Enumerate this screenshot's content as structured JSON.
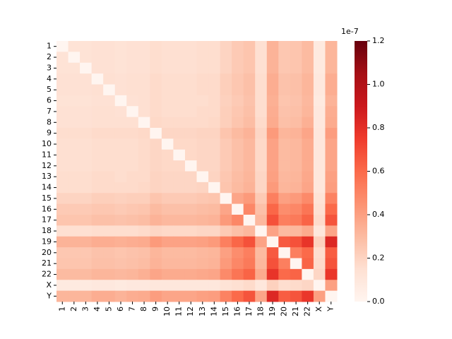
{
  "chart_data": {
    "type": "heatmap",
    "categories": [
      "1",
      "2",
      "3",
      "4",
      "5",
      "6",
      "7",
      "8",
      "9",
      "10",
      "11",
      "12",
      "13",
      "14",
      "15",
      "16",
      "17",
      "18",
      "19",
      "20",
      "21",
      "22",
      "X",
      "Y"
    ],
    "colormap": "Reds",
    "zlim": [
      0,
      1.2
    ],
    "zticks": [
      {
        "value": 0,
        "label": "0.0"
      },
      {
        "value": 0.2,
        "label": "0.2"
      },
      {
        "value": 0.4,
        "label": "0.4"
      },
      {
        "value": 0.6,
        "label": "0.6"
      },
      {
        "value": 0.8,
        "label": "0.8"
      },
      {
        "value": 1,
        "label": "1.0"
      },
      {
        "value": 1.2,
        "label": "1.2"
      }
    ],
    "offset_label": "1e-7",
    "values": [
      [
        0,
        0.13,
        0.13,
        0.14,
        0.14,
        0.13,
        0.14,
        0.14,
        0.16,
        0.15,
        0.15,
        0.15,
        0.16,
        0.16,
        0.2,
        0.24,
        0.26,
        0.15,
        0.33,
        0.25,
        0.26,
        0.3,
        0.08,
        0.32
      ],
      [
        0.13,
        0,
        0.13,
        0.14,
        0.14,
        0.13,
        0.14,
        0.14,
        0.16,
        0.15,
        0.15,
        0.15,
        0.16,
        0.16,
        0.2,
        0.24,
        0.26,
        0.15,
        0.33,
        0.25,
        0.26,
        0.3,
        0.08,
        0.32
      ],
      [
        0.13,
        0.13,
        0,
        0.14,
        0.14,
        0.13,
        0.14,
        0.14,
        0.16,
        0.15,
        0.15,
        0.15,
        0.16,
        0.16,
        0.2,
        0.24,
        0.26,
        0.15,
        0.33,
        0.25,
        0.26,
        0.3,
        0.08,
        0.32
      ],
      [
        0.14,
        0.14,
        0.14,
        0,
        0.15,
        0.14,
        0.15,
        0.15,
        0.17,
        0.16,
        0.16,
        0.16,
        0.17,
        0.17,
        0.22,
        0.25,
        0.28,
        0.16,
        0.35,
        0.27,
        0.28,
        0.32,
        0.09,
        0.35
      ],
      [
        0.14,
        0.14,
        0.14,
        0.15,
        0,
        0.14,
        0.15,
        0.15,
        0.17,
        0.16,
        0.16,
        0.16,
        0.17,
        0.17,
        0.22,
        0.25,
        0.28,
        0.16,
        0.35,
        0.27,
        0.28,
        0.32,
        0.09,
        0.35
      ],
      [
        0.13,
        0.13,
        0.13,
        0.14,
        0.14,
        0,
        0.14,
        0.15,
        0.17,
        0.16,
        0.16,
        0.16,
        0.16,
        0.17,
        0.21,
        0.24,
        0.27,
        0.16,
        0.34,
        0.26,
        0.27,
        0.31,
        0.08,
        0.33
      ],
      [
        0.14,
        0.14,
        0.14,
        0.15,
        0.15,
        0.14,
        0,
        0.15,
        0.17,
        0.16,
        0.16,
        0.16,
        0.17,
        0.17,
        0.22,
        0.25,
        0.28,
        0.16,
        0.35,
        0.27,
        0.28,
        0.32,
        0.09,
        0.35
      ],
      [
        0.14,
        0.14,
        0.14,
        0.15,
        0.15,
        0.15,
        0.15,
        0,
        0.18,
        0.17,
        0.17,
        0.17,
        0.17,
        0.18,
        0.22,
        0.26,
        0.29,
        0.17,
        0.36,
        0.28,
        0.29,
        0.34,
        0.09,
        0.36
      ],
      [
        0.16,
        0.16,
        0.16,
        0.17,
        0.17,
        0.17,
        0.17,
        0.18,
        0,
        0.19,
        0.19,
        0.19,
        0.2,
        0.2,
        0.26,
        0.3,
        0.33,
        0.19,
        0.42,
        0.32,
        0.33,
        0.38,
        0.1,
        0.41
      ],
      [
        0.15,
        0.15,
        0.15,
        0.16,
        0.16,
        0.16,
        0.16,
        0.17,
        0.19,
        0,
        0.18,
        0.18,
        0.19,
        0.19,
        0.24,
        0.28,
        0.31,
        0.18,
        0.39,
        0.3,
        0.31,
        0.36,
        0.1,
        0.38
      ],
      [
        0.15,
        0.15,
        0.15,
        0.16,
        0.16,
        0.16,
        0.16,
        0.17,
        0.19,
        0.18,
        0,
        0.18,
        0.19,
        0.19,
        0.24,
        0.28,
        0.31,
        0.18,
        0.39,
        0.3,
        0.31,
        0.36,
        0.1,
        0.38
      ],
      [
        0.15,
        0.15,
        0.15,
        0.16,
        0.16,
        0.16,
        0.16,
        0.17,
        0.19,
        0.18,
        0.18,
        0,
        0.19,
        0.19,
        0.24,
        0.28,
        0.31,
        0.18,
        0.39,
        0.3,
        0.31,
        0.36,
        0.1,
        0.38
      ],
      [
        0.16,
        0.16,
        0.16,
        0.17,
        0.17,
        0.16,
        0.17,
        0.17,
        0.2,
        0.19,
        0.19,
        0.19,
        0,
        0.2,
        0.25,
        0.29,
        0.32,
        0.19,
        0.4,
        0.31,
        0.32,
        0.37,
        0.1,
        0.4
      ],
      [
        0.16,
        0.16,
        0.16,
        0.17,
        0.17,
        0.17,
        0.17,
        0.18,
        0.2,
        0.19,
        0.19,
        0.19,
        0.2,
        0,
        0.26,
        0.3,
        0.33,
        0.19,
        0.42,
        0.32,
        0.33,
        0.38,
        0.1,
        0.41
      ],
      [
        0.2,
        0.2,
        0.2,
        0.22,
        0.22,
        0.21,
        0.22,
        0.22,
        0.26,
        0.24,
        0.24,
        0.24,
        0.25,
        0.26,
        0,
        0.38,
        0.42,
        0.24,
        0.52,
        0.4,
        0.42,
        0.48,
        0.13,
        0.51
      ],
      [
        0.24,
        0.24,
        0.24,
        0.25,
        0.25,
        0.24,
        0.25,
        0.26,
        0.3,
        0.28,
        0.28,
        0.28,
        0.29,
        0.3,
        0.38,
        0,
        0.49,
        0.28,
        0.61,
        0.47,
        0.49,
        0.56,
        0.15,
        0.6
      ],
      [
        0.26,
        0.26,
        0.26,
        0.28,
        0.28,
        0.27,
        0.28,
        0.29,
        0.33,
        0.31,
        0.31,
        0.31,
        0.32,
        0.33,
        0.42,
        0.49,
        0,
        0.31,
        0.68,
        0.52,
        0.54,
        0.62,
        0.17,
        0.67
      ],
      [
        0.15,
        0.15,
        0.15,
        0.16,
        0.16,
        0.16,
        0.16,
        0.17,
        0.19,
        0.18,
        0.18,
        0.18,
        0.19,
        0.19,
        0.24,
        0.28,
        0.31,
        0,
        0.39,
        0.3,
        0.31,
        0.36,
        0.1,
        0.38
      ],
      [
        0.33,
        0.33,
        0.33,
        0.35,
        0.35,
        0.34,
        0.35,
        0.36,
        0.42,
        0.39,
        0.39,
        0.39,
        0.4,
        0.42,
        0.52,
        0.61,
        0.68,
        0.39,
        0,
        0.65,
        0.68,
        0.78,
        0.21,
        0.83
      ],
      [
        0.25,
        0.25,
        0.25,
        0.27,
        0.27,
        0.26,
        0.27,
        0.28,
        0.32,
        0.3,
        0.3,
        0.3,
        0.31,
        0.32,
        0.4,
        0.47,
        0.52,
        0.3,
        0.65,
        0,
        0.52,
        0.6,
        0.16,
        0.64
      ],
      [
        0.26,
        0.26,
        0.26,
        0.28,
        0.28,
        0.27,
        0.28,
        0.29,
        0.33,
        0.31,
        0.31,
        0.31,
        0.32,
        0.33,
        0.42,
        0.49,
        0.54,
        0.31,
        0.68,
        0.52,
        0,
        0.62,
        0.17,
        0.67
      ],
      [
        0.3,
        0.3,
        0.3,
        0.32,
        0.32,
        0.31,
        0.32,
        0.34,
        0.38,
        0.36,
        0.36,
        0.36,
        0.37,
        0.38,
        0.48,
        0.56,
        0.62,
        0.36,
        0.78,
        0.6,
        0.62,
        0,
        0.19,
        0.77
      ],
      [
        0.08,
        0.08,
        0.08,
        0.09,
        0.09,
        0.08,
        0.09,
        0.09,
        0.1,
        0.1,
        0.1,
        0.1,
        0.1,
        0.1,
        0.13,
        0.15,
        0.17,
        0.1,
        0.21,
        0.16,
        0.17,
        0.19,
        0,
        0.4
      ],
      [
        0.32,
        0.32,
        0.32,
        0.35,
        0.35,
        0.33,
        0.35,
        0.36,
        0.41,
        0.38,
        0.38,
        0.38,
        0.4,
        0.41,
        0.51,
        0.6,
        0.67,
        0.38,
        0.83,
        0.64,
        0.67,
        0.77,
        0.4,
        0
      ]
    ]
  }
}
